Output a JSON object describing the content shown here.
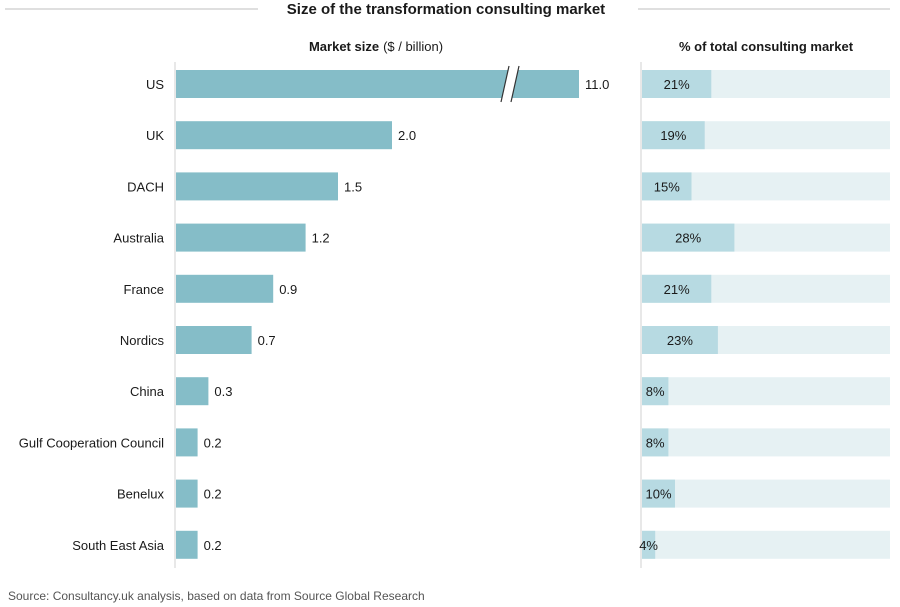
{
  "colors": {
    "bar": "#85bdc8",
    "pct_fill": "#b7dae2",
    "pct_track": "#e6f1f3",
    "rule": "#bfbfbf",
    "axis": "#d0d0d0"
  },
  "chart_data": [
    {
      "type": "bar",
      "orientation": "horizontal",
      "title": "Size of the transformation consulting market",
      "xlabel_bold": "Market size",
      "xlabel_unit": "($ / billion)",
      "categories": [
        "US",
        "UK",
        "DACH",
        "Australia",
        "France",
        "Nordics",
        "China",
        "Gulf Cooperation Council",
        "Benelux",
        "South East Asia"
      ],
      "values": [
        11.0,
        2.0,
        1.5,
        1.2,
        0.9,
        0.7,
        0.3,
        0.2,
        0.2,
        0.2
      ],
      "value_labels": [
        "11.0",
        "2.0",
        "1.5",
        "1.2",
        "0.9",
        "0.7",
        "0.3",
        "0.2",
        "0.2",
        "0.2"
      ],
      "axis_break": "US"
    },
    {
      "type": "bar",
      "orientation": "horizontal",
      "title": "% of total consulting market",
      "categories": [
        "US",
        "UK",
        "DACH",
        "Australia",
        "France",
        "Nordics",
        "China",
        "Gulf Cooperation Council",
        "Benelux",
        "South East Asia"
      ],
      "values": [
        21,
        19,
        15,
        28,
        21,
        23,
        8,
        8,
        10,
        4
      ],
      "value_labels": [
        "21%",
        "19%",
        "15%",
        "28%",
        "21%",
        "23%",
        "8%",
        "8%",
        "10%",
        "4%"
      ],
      "xlim": [
        0,
        100
      ]
    }
  ],
  "source": "Source: Consultancy.uk analysis, based on data from Source Global Research"
}
